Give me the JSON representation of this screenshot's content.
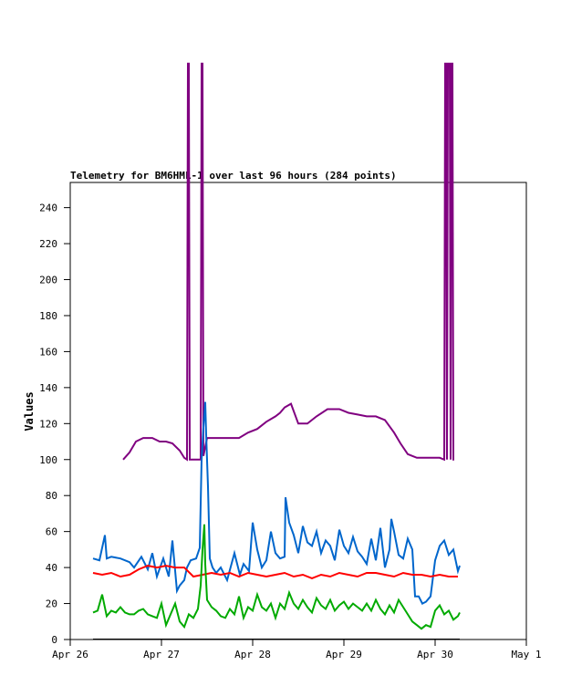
{
  "chart_data": {
    "type": "line",
    "title": "Telemetry for BM6HML-1 over last 96 hours (284 points)",
    "xlabel": "",
    "ylabel": "Values",
    "xlim": [
      "Apr 26",
      "May 1"
    ],
    "ylim": [
      0,
      254
    ],
    "x_tick_labels": [
      "Apr 26",
      "Apr 27",
      "Apr 28",
      "Apr 29",
      "Apr 30",
      "May 1"
    ],
    "y_ticks": [
      0,
      20,
      40,
      60,
      80,
      100,
      120,
      140,
      160,
      180,
      200,
      220,
      240
    ],
    "grid": false,
    "legend": "none",
    "x_unit": "days after Apr 26 00:00",
    "series": [
      {
        "color": "#800080",
        "x": [
          0.58,
          0.65,
          0.72,
          0.8,
          0.9,
          0.98,
          1.05,
          1.12,
          1.2,
          1.25,
          1.28,
          1.29,
          1.3,
          1.31,
          1.43,
          1.44,
          1.45,
          1.46,
          1.5,
          1.6,
          1.7,
          1.85,
          1.95,
          2.05,
          2.15,
          2.25,
          2.3,
          2.35,
          2.42,
          2.5,
          2.6,
          2.7,
          2.82,
          2.95,
          3.05,
          3.15,
          3.25,
          3.35,
          3.45,
          3.55,
          3.62,
          3.7,
          3.75,
          3.8,
          3.85,
          3.95,
          4.05,
          4.1,
          4.11,
          4.12,
          4.13,
          4.14,
          4.16,
          4.17,
          4.18,
          4.19,
          4.2,
          4.21
        ],
        "values": [
          100,
          104,
          110,
          112,
          112,
          110,
          110,
          109,
          105,
          101,
          100,
          320,
          320,
          100,
          100,
          320,
          320,
          102,
          112,
          112,
          112,
          112,
          115,
          117,
          121,
          124,
          126,
          129,
          131,
          120,
          120,
          124,
          128,
          128,
          126,
          125,
          124,
          124,
          122,
          115,
          109,
          103,
          102,
          101,
          101,
          101,
          101,
          100,
          320,
          320,
          100,
          320,
          320,
          100,
          320,
          320,
          100,
          100
        ]
      },
      {
        "color": "#0066cc",
        "x": [
          0.25,
          0.32,
          0.38,
          0.4,
          0.45,
          0.55,
          0.65,
          0.7,
          0.78,
          0.85,
          0.9,
          0.95,
          1.02,
          1.08,
          1.12,
          1.17,
          1.2,
          1.25,
          1.28,
          1.32,
          1.38,
          1.42,
          1.44,
          1.46,
          1.48,
          1.49,
          1.51,
          1.53,
          1.56,
          1.6,
          1.65,
          1.72,
          1.8,
          1.86,
          1.9,
          1.96,
          2.0,
          2.05,
          2.1,
          2.15,
          2.2,
          2.25,
          2.3,
          2.35,
          2.36,
          2.4,
          2.45,
          2.5,
          2.55,
          2.6,
          2.65,
          2.7,
          2.75,
          2.8,
          2.85,
          2.9,
          2.95,
          3.0,
          3.05,
          3.1,
          3.15,
          3.2,
          3.25,
          3.3,
          3.35,
          3.4,
          3.45,
          3.5,
          3.52,
          3.55,
          3.6,
          3.65,
          3.7,
          3.75,
          3.78,
          3.82,
          3.86,
          3.9,
          3.95,
          4.0,
          4.05,
          4.1,
          4.15,
          4.2,
          4.25,
          4.27
        ],
        "values": [
          45,
          44,
          58,
          45,
          46,
          45,
          43,
          40,
          46,
          39,
          48,
          35,
          45,
          35,
          55,
          27,
          30,
          33,
          40,
          44,
          45,
          51,
          100,
          118,
          132,
          114,
          85,
          45,
          40,
          37,
          40,
          33,
          48,
          36,
          42,
          38,
          65,
          50,
          40,
          44,
          60,
          48,
          45,
          46,
          79,
          65,
          58,
          48,
          63,
          54,
          52,
          60,
          48,
          55,
          52,
          44,
          61,
          52,
          48,
          57,
          49,
          46,
          42,
          56,
          44,
          62,
          40,
          50,
          67,
          60,
          47,
          45,
          56,
          50,
          24,
          24,
          20,
          21,
          24,
          44,
          52,
          55,
          47,
          50,
          38,
          41
        ]
      },
      {
        "color": "#ff0000",
        "x": [
          0.25,
          0.35,
          0.45,
          0.55,
          0.65,
          0.75,
          0.85,
          0.95,
          1.05,
          1.15,
          1.25,
          1.35,
          1.45,
          1.55,
          1.65,
          1.75,
          1.85,
          1.95,
          2.05,
          2.15,
          2.25,
          2.35,
          2.45,
          2.55,
          2.65,
          2.75,
          2.85,
          2.95,
          3.05,
          3.15,
          3.25,
          3.35,
          3.45,
          3.55,
          3.65,
          3.75,
          3.85,
          3.95,
          4.05,
          4.15,
          4.25
        ],
        "values": [
          37,
          36,
          37,
          35,
          36,
          39,
          41,
          40,
          41,
          40,
          40,
          35,
          36,
          37,
          36,
          37,
          35,
          37,
          36,
          35,
          36,
          37,
          35,
          36,
          34,
          36,
          35,
          37,
          36,
          35,
          37,
          37,
          36,
          35,
          37,
          36,
          36,
          35,
          36,
          35,
          35
        ]
      },
      {
        "color": "#00aa00",
        "x": [
          0.25,
          0.3,
          0.35,
          0.4,
          0.45,
          0.5,
          0.55,
          0.6,
          0.65,
          0.7,
          0.75,
          0.8,
          0.85,
          0.9,
          0.95,
          1.0,
          1.05,
          1.1,
          1.15,
          1.2,
          1.25,
          1.3,
          1.35,
          1.4,
          1.43,
          1.45,
          1.47,
          1.48,
          1.5,
          1.55,
          1.6,
          1.65,
          1.7,
          1.75,
          1.8,
          1.85,
          1.9,
          1.95,
          2.0,
          2.05,
          2.1,
          2.15,
          2.2,
          2.25,
          2.3,
          2.35,
          2.4,
          2.45,
          2.5,
          2.55,
          2.6,
          2.65,
          2.7,
          2.75,
          2.8,
          2.85,
          2.9,
          2.95,
          3.0,
          3.05,
          3.1,
          3.15,
          3.2,
          3.25,
          3.3,
          3.35,
          3.4,
          3.45,
          3.5,
          3.55,
          3.6,
          3.65,
          3.7,
          3.75,
          3.8,
          3.85,
          3.9,
          3.95,
          4.0,
          4.05,
          4.1,
          4.15,
          4.2,
          4.25,
          4.27
        ],
        "values": [
          15,
          16,
          25,
          13,
          16,
          15,
          18,
          15,
          14,
          14,
          16,
          17,
          14,
          13,
          12,
          20,
          8,
          14,
          20,
          10,
          7,
          14,
          12,
          17,
          30,
          50,
          64,
          42,
          22,
          18,
          16,
          13,
          12,
          17,
          14,
          24,
          12,
          18,
          16,
          25,
          18,
          16,
          20,
          12,
          20,
          17,
          26,
          20,
          17,
          22,
          18,
          15,
          23,
          19,
          17,
          22,
          16,
          19,
          21,
          17,
          20,
          18,
          16,
          20,
          16,
          22,
          17,
          14,
          19,
          15,
          22,
          18,
          14,
          10,
          8,
          6,
          8,
          7,
          16,
          19,
          14,
          16,
          11,
          13,
          15
        ]
      },
      {
        "color": "#000000",
        "x": [
          0.25,
          4.27
        ],
        "values": [
          0,
          0
        ]
      }
    ]
  }
}
